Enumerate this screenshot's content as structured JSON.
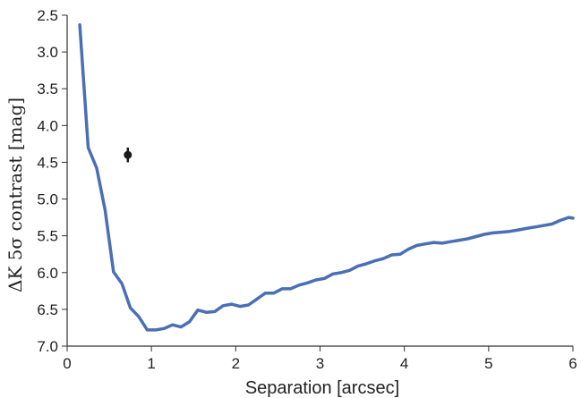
{
  "chart_data": {
    "type": "line",
    "xlabel": "Separation [arcsec]",
    "ylabel": "ΔK 5σ contrast [mag]",
    "xlim": [
      0,
      6
    ],
    "ylim": [
      2.5,
      7.0
    ],
    "y_inverted": true,
    "grid": false,
    "x_ticks": [
      "0",
      "1",
      "2",
      "3",
      "4",
      "5",
      "6"
    ],
    "y_ticks": [
      "2.5",
      "3.0",
      "3.5",
      "4.0",
      "4.5",
      "5.0",
      "5.5",
      "6.0",
      "6.5",
      "7.0"
    ],
    "series": [
      {
        "color": "#4a6fb5",
        "x": [
          0.15,
          0.25,
          0.35,
          0.45,
          0.55,
          0.65,
          0.75,
          0.85,
          0.95,
          1.05,
          1.15,
          1.25,
          1.35,
          1.45,
          1.55,
          1.65,
          1.75,
          1.85,
          1.95,
          2.05,
          2.15,
          2.25,
          2.35,
          2.45,
          2.55,
          2.65,
          2.75,
          2.85,
          2.95,
          3.05,
          3.15,
          3.25,
          3.35,
          3.45,
          3.55,
          3.65,
          3.75,
          3.85,
          3.95,
          4.05,
          4.15,
          4.25,
          4.35,
          4.45,
          4.55,
          4.65,
          4.75,
          4.85,
          4.95,
          5.05,
          5.15,
          5.25,
          5.35,
          5.45,
          5.55,
          5.65,
          5.75,
          5.85,
          5.95,
          6.0
        ],
        "values": [
          2.63,
          4.3,
          4.58,
          5.15,
          5.99,
          6.15,
          6.48,
          6.6,
          6.78,
          6.78,
          6.76,
          6.71,
          6.74,
          6.67,
          6.51,
          6.54,
          6.53,
          6.45,
          6.43,
          6.46,
          6.44,
          6.36,
          6.28,
          6.28,
          6.22,
          6.22,
          6.17,
          6.14,
          6.1,
          6.08,
          6.02,
          6.0,
          5.97,
          5.91,
          5.88,
          5.84,
          5.81,
          5.76,
          5.75,
          5.68,
          5.63,
          5.61,
          5.59,
          5.6,
          5.58,
          5.56,
          5.54,
          5.51,
          5.48,
          5.46,
          5.45,
          5.44,
          5.42,
          5.4,
          5.38,
          5.36,
          5.34,
          5.29,
          5.25,
          5.26
        ]
      }
    ],
    "points": [
      {
        "x": 0.72,
        "y": 4.4,
        "yerr": 0.1,
        "color": "#1a1a1a"
      }
    ]
  }
}
